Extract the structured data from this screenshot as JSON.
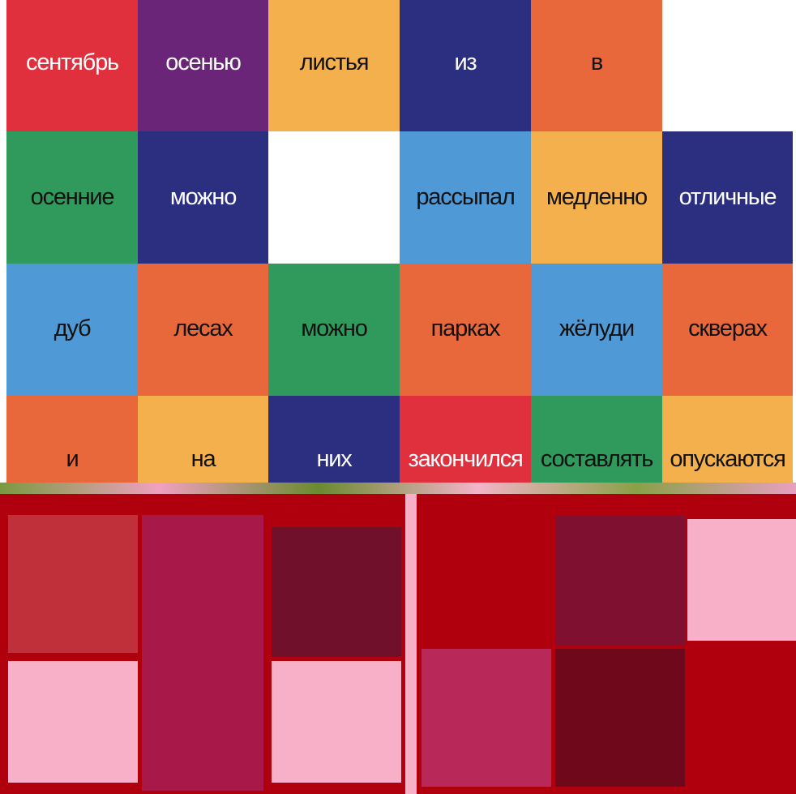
{
  "grid": {
    "rows": [
      [
        {
          "text": "сентябрь",
          "color": "#e0303e",
          "text_color": "#ffffff"
        },
        {
          "text": "осенью",
          "color": "#6a2478",
          "text_color": "#ffffff"
        },
        {
          "text": "листья",
          "color": "#f4b04c",
          "text_color": "#111111"
        },
        {
          "text": "из",
          "color": "#2c2f80",
          "text_color": "#ffffff"
        },
        {
          "text": "в",
          "color": "#e8683c",
          "text_color": "#111111"
        },
        {
          "color": "#ffffff"
        }
      ],
      [
        {
          "text": "осенние",
          "color": "#2f9a5c",
          "text_color": "#111111"
        },
        {
          "text": "можно",
          "color": "#2c2f80",
          "text_color": "#ffffff"
        },
        {
          "color": "#ffffff"
        },
        {
          "text": "рассыпал",
          "color": "#4f9ad6",
          "text_color": "#111111"
        },
        {
          "text": "медленно",
          "color": "#f4b04c",
          "text_color": "#111111"
        },
        {
          "text": "отличные",
          "color": "#2c2f80",
          "text_color": "#ffffff"
        }
      ],
      [
        {
          "text": "дуб",
          "color": "#4f9ad6",
          "text_color": "#111111"
        },
        {
          "text": "лесах",
          "color": "#e8683c",
          "text_color": "#111111"
        },
        {
          "text": "можно",
          "color": "#2f9a5c",
          "text_color": "#111111"
        },
        {
          "text": "парках",
          "color": "#e8683c",
          "text_color": "#111111"
        },
        {
          "text": "жёлуди",
          "color": "#4f9ad6",
          "text_color": "#111111"
        },
        {
          "text": "скверах",
          "color": "#e8683c",
          "text_color": "#111111"
        }
      ],
      [
        {
          "text": "и",
          "color": "#e8683c",
          "text_color": "#111111"
        },
        {
          "text": "на",
          "color": "#f4b04c",
          "text_color": "#111111"
        },
        {
          "text": "них",
          "color": "#2c2f80",
          "text_color": "#ffffff"
        },
        {
          "text": "закончился",
          "color": "#e0303e",
          "text_color": "#ffffff"
        },
        {
          "text": "составлять",
          "color": "#2f9a5c",
          "text_color": "#111111"
        },
        {
          "text": "опускаются",
          "color": "#f4b04c",
          "text_color": "#111111"
        }
      ]
    ]
  }
}
